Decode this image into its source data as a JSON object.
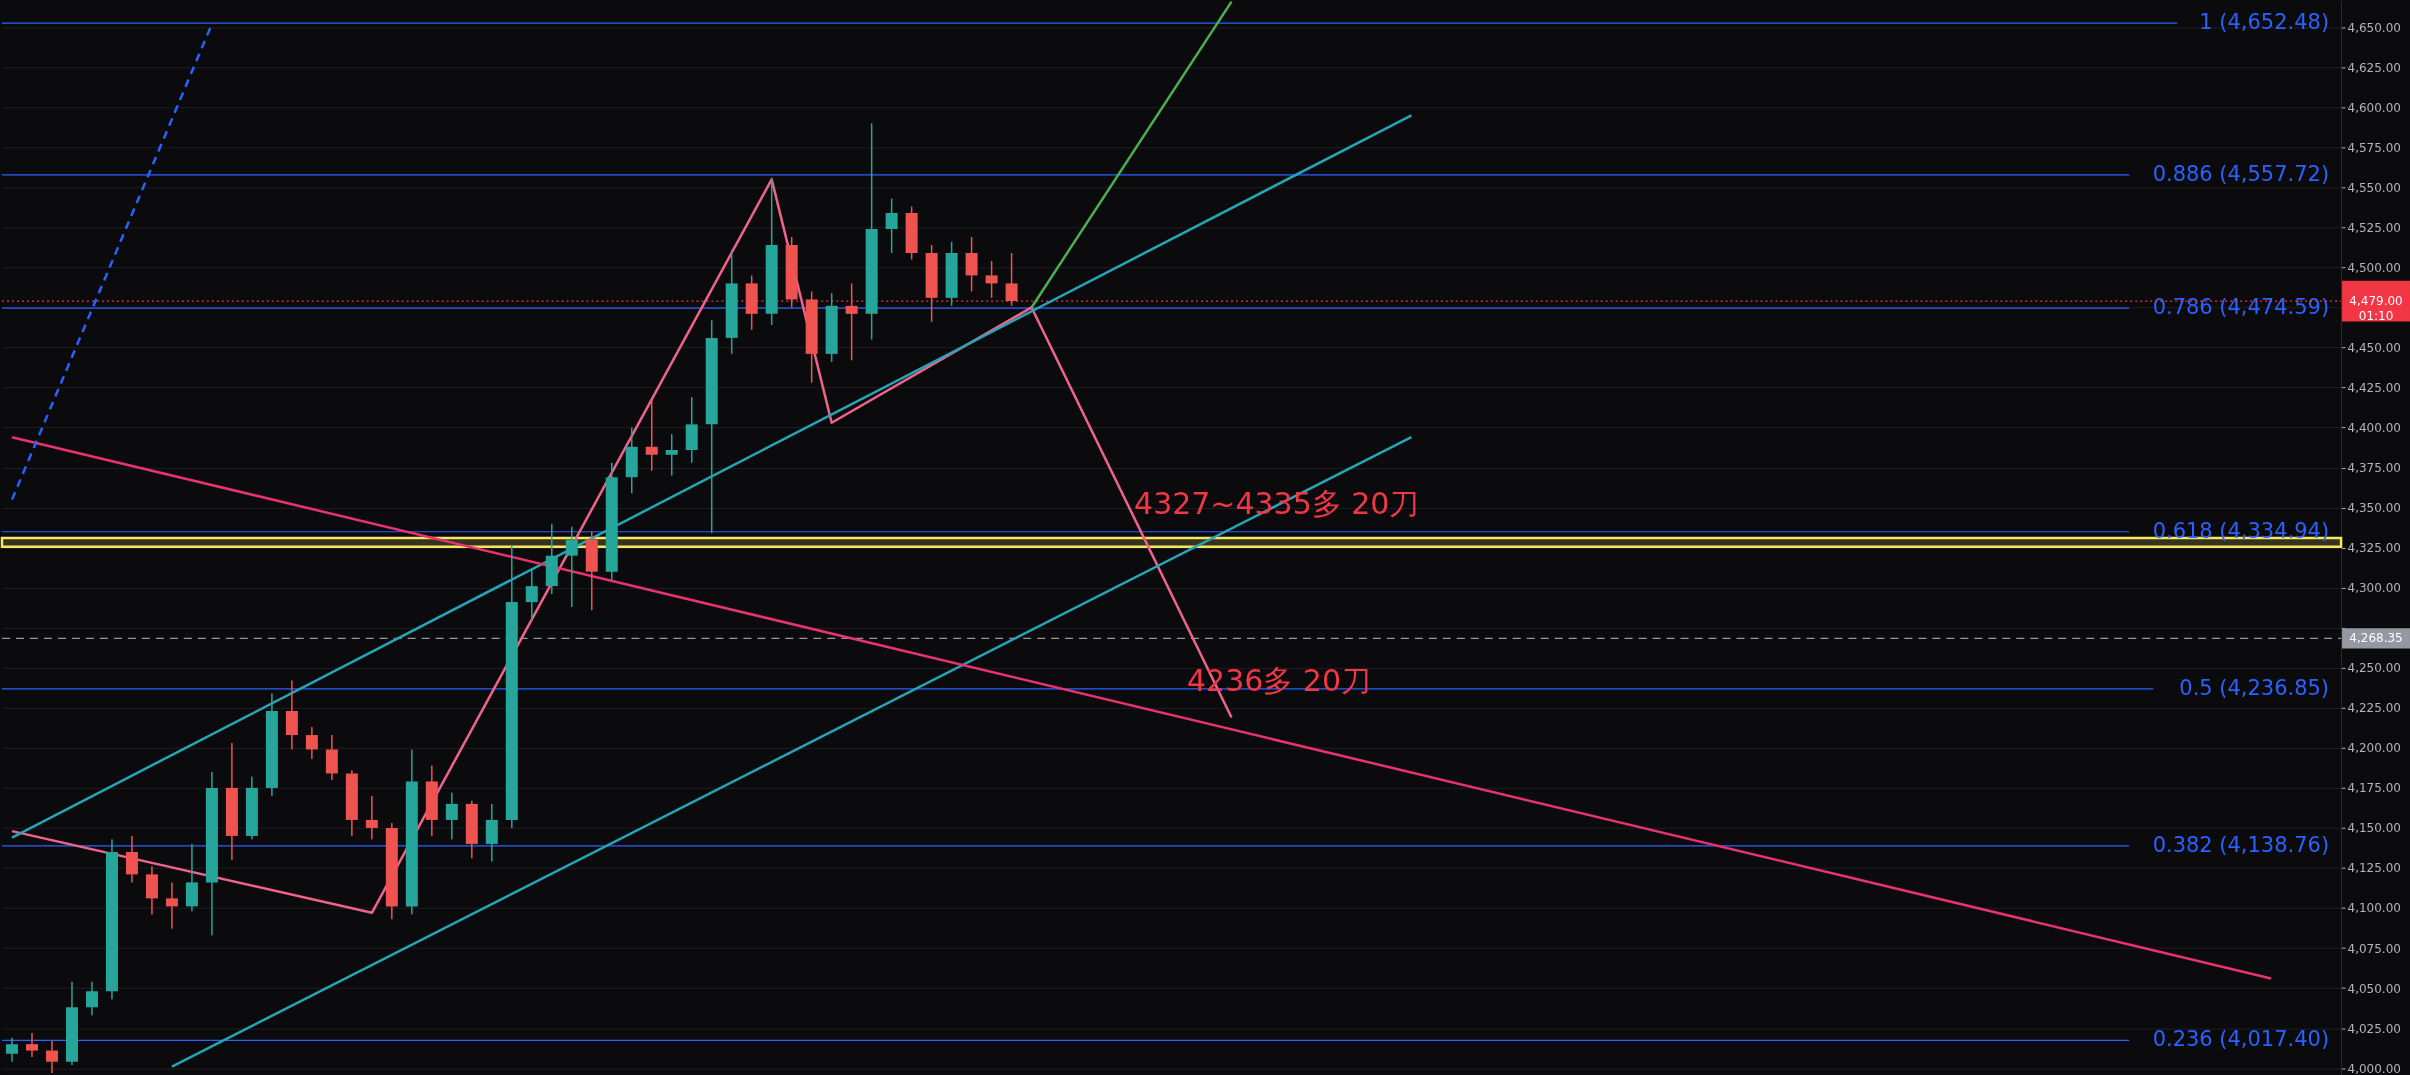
{
  "chart_data": {
    "type": "candlestick",
    "categories": [
      null,
      null,
      null,
      null,
      null,
      null,
      null,
      null,
      null,
      null,
      null,
      null,
      null,
      null,
      null,
      null,
      null,
      null,
      null,
      null,
      null,
      null,
      null,
      null,
      null,
      null,
      null,
      null,
      null,
      null,
      null,
      null,
      null,
      null,
      null,
      null,
      null,
      null,
      null,
      null,
      null,
      null,
      null,
      null,
      null,
      null,
      null,
      null,
      null,
      null,
      null,
      null,
      null,
      null,
      null,
      null,
      null,
      null,
      null,
      null,
      null,
      null,
      null,
      null,
      null,
      null,
      null,
      null,
      null,
      null,
      null,
      null,
      null,
      null,
      null,
      null,
      null,
      null,
      null,
      null,
      null,
      null,
      null,
      null,
      null,
      null,
      null,
      null,
      null,
      null,
      null,
      null,
      null,
      null,
      null,
      null,
      null,
      null,
      null,
      null,
      null,
      null,
      null,
      null,
      null,
      null,
      null,
      null,
      null,
      null,
      null,
      null,
      null,
      null,
      null,
      null,
      null
    ],
    "ohlc": [
      [
        4009,
        4019,
        4004,
        4015
      ],
      [
        4015,
        4022,
        4007,
        4011
      ],
      [
        4011,
        4017,
        3997,
        4004
      ],
      [
        4004,
        4054,
        4002,
        4038
      ],
      [
        4038,
        4054,
        4033,
        4048
      ],
      [
        4048,
        4143,
        4043,
        4135
      ],
      [
        4135,
        4145,
        4116,
        4121
      ],
      [
        4121,
        4126,
        4096,
        4106
      ],
      [
        4106,
        4116,
        4087,
        4101
      ],
      [
        4101,
        4140,
        4098,
        4116
      ],
      [
        4116,
        4185,
        4083,
        4175
      ],
      [
        4175,
        4203,
        4130,
        4145
      ],
      [
        4145,
        4182,
        4143,
        4175
      ],
      [
        4175,
        4234,
        4170,
        4223
      ],
      [
        4223,
        4242,
        4199,
        4208
      ],
      [
        4208,
        4213,
        4193,
        4199
      ],
      [
        4199,
        4208,
        4180,
        4184
      ],
      [
        4184,
        4186,
        4145,
        4155
      ],
      [
        4155,
        4170,
        4143,
        4150
      ],
      [
        4150,
        4153,
        4093,
        4101
      ],
      [
        4101,
        4199,
        4096,
        4179
      ],
      [
        4179,
        4189,
        4145,
        4155
      ],
      [
        4155,
        4172,
        4143,
        4165
      ],
      [
        4165,
        4167,
        4131,
        4140
      ],
      [
        4140,
        4165,
        4129,
        4155
      ],
      [
        4155,
        4326,
        4150,
        4291
      ],
      [
        4291,
        4311,
        4279,
        4301
      ],
      [
        4301,
        4340,
        4296,
        4320
      ],
      [
        4320,
        4338,
        4288,
        4330
      ],
      [
        4330,
        4335,
        4286,
        4310
      ],
      [
        4310,
        4378,
        4305,
        4369
      ],
      [
        4369,
        4400,
        4359,
        4388
      ],
      [
        4388,
        4417,
        4373,
        4383
      ],
      [
        4383,
        4396,
        4370,
        4386
      ],
      [
        4386,
        4419,
        4378,
        4402
      ],
      [
        4402,
        4467,
        4334,
        4456
      ],
      [
        4456,
        4511,
        4446,
        4490
      ],
      [
        4490,
        4495,
        4461,
        4471
      ],
      [
        4471,
        4556,
        4464,
        4514
      ],
      [
        4514,
        4519,
        4475,
        4480
      ],
      [
        4480,
        4485,
        4428,
        4446
      ],
      [
        4446,
        4484,
        4441,
        4476
      ],
      [
        4476,
        4490,
        4442,
        4471
      ],
      [
        4471,
        4590,
        4455,
        4524
      ],
      [
        4524,
        4543,
        4509,
        4534
      ],
      [
        4534,
        4538,
        4505,
        4509
      ],
      [
        4509,
        4514,
        4466,
        4481
      ],
      [
        4481,
        4516,
        4476,
        4509
      ],
      [
        4509,
        4519,
        4485,
        4495
      ],
      [
        4495,
        4504,
        4481,
        4490
      ],
      [
        4490,
        4509,
        4476,
        4479
      ],
      null,
      null,
      null,
      null,
      null,
      null,
      null,
      null,
      null,
      null,
      null,
      null,
      null,
      null,
      null,
      null,
      null,
      null,
      null,
      null,
      null,
      null,
      null,
      null,
      null,
      null,
      null,
      null,
      null,
      null,
      null,
      null,
      null,
      null,
      null,
      null,
      null,
      null,
      null,
      null,
      null,
      null,
      null,
      null,
      null,
      null,
      null,
      null,
      null,
      null,
      null,
      null,
      null,
      null,
      null,
      null,
      null,
      null,
      null,
      null,
      null,
      null,
      null,
      null,
      null,
      null
    ],
    "colors": [
      "#26a69a",
      "#ef5350",
      "#ef5350",
      "#26a69a",
      "#26a69a",
      "#26a69a",
      "#ef5350",
      "#ef5350",
      "#ef5350",
      "#26a69a",
      "#26a69a",
      "#ef5350",
      "#26a69a",
      "#26a69a",
      "#ef5350",
      "#ef5350",
      "#ef5350",
      "#ef5350",
      "#ef5350",
      "#ef5350",
      "#26a69a",
      "#ef5350",
      "#26a69a",
      "#ef5350",
      "#26a69a",
      "#26a69a",
      "#26a69a",
      "#26a69a",
      "#26a69a",
      "#ef5350",
      "#26a69a",
      "#26a69a",
      "#ef5350",
      "#26a69a",
      "#26a69a",
      "#26a69a",
      "#26a69a",
      "#ef5350",
      "#26a69a",
      "#ef5350",
      "#ef5350",
      "#26a69a",
      "#ef5350",
      "#26a69a",
      "#26a69a",
      "#ef5350",
      "#ef5350",
      "#26a69a",
      "#ef5350",
      "#ef5350",
      "#ef5350",
      null,
      null,
      null,
      null,
      null,
      null,
      null,
      null,
      null,
      null,
      null,
      null,
      null,
      null,
      null,
      null,
      null,
      null,
      null,
      null,
      null,
      null,
      null,
      null,
      null,
      null,
      null,
      null,
      null,
      null,
      null,
      null,
      null,
      null,
      null,
      null,
      null,
      null,
      null,
      null,
      null,
      null,
      null,
      null,
      null,
      null,
      null,
      null,
      null,
      null,
      null,
      null,
      null,
      null,
      null,
      null,
      null,
      null,
      null,
      null,
      null,
      null,
      null,
      null,
      null,
      null
    ],
    "series": [
      {
        "type": "line",
        "color": "#f0648c",
        "values": [
          4148,
          null,
          null,
          null,
          null,
          null,
          null,
          null,
          null,
          null,
          null,
          null,
          null,
          null,
          null,
          null,
          null,
          null,
          4097,
          null,
          null,
          null,
          null,
          null,
          null,
          null,
          null,
          null,
          null,
          null,
          null,
          null,
          null,
          null,
          null,
          null,
          null,
          null,
          4555,
          null,
          null,
          4403,
          null,
          null,
          null,
          null,
          null,
          null,
          null,
          null,
          null,
          4475,
          null,
          null,
          null,
          null,
          null,
          null,
          null,
          null,
          null,
          4219,
          null,
          null,
          null,
          null,
          null,
          null,
          null,
          null,
          null,
          null,
          null,
          null,
          null,
          null,
          null,
          null,
          null,
          null,
          null,
          null,
          null,
          null,
          null,
          null,
          null,
          null,
          null,
          null,
          null,
          null,
          null,
          null,
          null,
          null,
          null,
          null,
          null,
          null,
          null,
          null,
          null,
          null,
          null,
          null,
          null,
          null,
          null,
          null,
          null,
          null,
          null,
          null,
          null,
          null,
          null
        ]
      },
      {
        "type": "line",
        "color": "#4caf50",
        "values": [
          null,
          null,
          null,
          null,
          null,
          null,
          null,
          null,
          null,
          null,
          null,
          null,
          null,
          null,
          null,
          null,
          null,
          null,
          null,
          null,
          null,
          null,
          null,
          null,
          null,
          null,
          null,
          null,
          null,
          null,
          null,
          null,
          null,
          null,
          null,
          null,
          null,
          null,
          null,
          null,
          null,
          null,
          null,
          null,
          null,
          null,
          null,
          null,
          null,
          null,
          null,
          4475,
          null,
          null,
          null,
          null,
          null,
          null,
          null,
          null,
          null,
          4666,
          null,
          null,
          null,
          null,
          null,
          null,
          null,
          null,
          null,
          null,
          null,
          null,
          null,
          null,
          null,
          null,
          null,
          null,
          null,
          null,
          null,
          null,
          null,
          null,
          null,
          null,
          null,
          null,
          null,
          null,
          null,
          null,
          null,
          null,
          null,
          null,
          null,
          null,
          null,
          null,
          null,
          null,
          null,
          null,
          null,
          null,
          null,
          null,
          null,
          null,
          null,
          null,
          null,
          null,
          null
        ]
      },
      {
        "type": "line",
        "color": "#26a5b8",
        "values": [
          4144,
          null,
          null,
          null,
          null,
          null,
          null,
          null,
          null,
          null,
          null,
          null,
          null,
          null,
          null,
          null,
          null,
          null,
          null,
          null,
          null,
          null,
          null,
          null,
          null,
          null,
          null,
          null,
          null,
          null,
          null,
          null,
          null,
          null,
          null,
          null,
          null,
          null,
          null,
          null,
          null,
          null,
          null,
          null,
          null,
          null,
          null,
          null,
          null,
          null,
          null,
          null,
          null,
          null,
          null,
          null,
          null,
          null,
          null,
          null,
          null,
          null,
          null,
          null,
          null,
          null,
          null,
          null,
          null,
          null,
          4595,
          null,
          null,
          null,
          null,
          null,
          null,
          null,
          null,
          null,
          null,
          null,
          null,
          null,
          null,
          null,
          null,
          null,
          null,
          null,
          null,
          null,
          null,
          null,
          null,
          null,
          null,
          null,
          null,
          null,
          null,
          null,
          null,
          null,
          null,
          null,
          null,
          null,
          null,
          null,
          null,
          null,
          null,
          null,
          null,
          null,
          null
        ]
      },
      {
        "type": "line",
        "color": "#26a5b8",
        "values": [
          null,
          null,
          null,
          null,
          null,
          null,
          null,
          null,
          4001,
          null,
          null,
          null,
          null,
          null,
          null,
          null,
          null,
          null,
          null,
          null,
          null,
          null,
          null,
          null,
          null,
          null,
          null,
          null,
          null,
          null,
          null,
          null,
          null,
          null,
          null,
          null,
          null,
          null,
          null,
          null,
          null,
          null,
          null,
          null,
          null,
          null,
          null,
          null,
          null,
          null,
          null,
          null,
          null,
          null,
          null,
          null,
          null,
          null,
          null,
          null,
          null,
          null,
          null,
          null,
          null,
          null,
          null,
          null,
          null,
          null,
          4394,
          null,
          null,
          null,
          null,
          null,
          null,
          null,
          null,
          null,
          null,
          null,
          null,
          null,
          null,
          null,
          null,
          null,
          null,
          null,
          null,
          null,
          null,
          null,
          null,
          null,
          null,
          null,
          null,
          null,
          null,
          null,
          null,
          null,
          null,
          null,
          null,
          null,
          null,
          null,
          null,
          null,
          null,
          null,
          null,
          null,
          null
        ]
      },
      {
        "type": "line",
        "color": "#e8336e",
        "values": [
          4394,
          null,
          null,
          null,
          null,
          null,
          null,
          null,
          null,
          null,
          null,
          null,
          null,
          null,
          null,
          null,
          null,
          null,
          null,
          null,
          null,
          null,
          null,
          null,
          null,
          null,
          null,
          null,
          null,
          null,
          null,
          null,
          null,
          null,
          null,
          null,
          null,
          null,
          null,
          null,
          null,
          null,
          null,
          null,
          null,
          null,
          null,
          null,
          null,
          null,
          null,
          null,
          null,
          null,
          null,
          null,
          null,
          null,
          null,
          null,
          null,
          null,
          null,
          null,
          null,
          null,
          null,
          null,
          null,
          null,
          null,
          null,
          null,
          null,
          null,
          null,
          null,
          null,
          null,
          null,
          null,
          null,
          null,
          null,
          null,
          null,
          null,
          null,
          null,
          null,
          null,
          null,
          null,
          null,
          null,
          null,
          null,
          null,
          null,
          null,
          null,
          null,
          null,
          null,
          null,
          null,
          null,
          null,
          null,
          null,
          null,
          null,
          null,
          4056,
          null,
          null,
          null
        ]
      },
      {
        "type": "line",
        "color": "#2962ff",
        "line_style": "dashed",
        "values": [
          4355,
          null,
          null,
          null,
          null,
          null,
          null,
          null,
          null,
          null,
          4652,
          null,
          null,
          null,
          null,
          null,
          null,
          null,
          null,
          null,
          null,
          null,
          null,
          null,
          null,
          null,
          null,
          null,
          null,
          null,
          null,
          null,
          null,
          null,
          null,
          null,
          null,
          null,
          null,
          null,
          null,
          null,
          null,
          null,
          null,
          null,
          null,
          null,
          null,
          null,
          null,
          null,
          null,
          null,
          null,
          null,
          null,
          null,
          null,
          null,
          null,
          null,
          null,
          null,
          null,
          null,
          null,
          null,
          null,
          null,
          null,
          null,
          null,
          null,
          null,
          null,
          null,
          null,
          null,
          null,
          null,
          null,
          null,
          null,
          null,
          null,
          null,
          null,
          null,
          null,
          null,
          null,
          null,
          null,
          null,
          null,
          null,
          null,
          null,
          null,
          null,
          null,
          null,
          null,
          null,
          null,
          null,
          null,
          null,
          null,
          null,
          null,
          null,
          null,
          null,
          null,
          null
        ]
      }
    ],
    "ylim": [
      3996,
      4666.7
    ],
    "yticks": [
      {
        "value": 4000,
        "label": "4,000.00"
      },
      {
        "value": 4025,
        "label": "4,025.00"
      },
      {
        "value": 4050,
        "label": "4,050.00"
      },
      {
        "value": 4075,
        "label": "4,075.00"
      },
      {
        "value": 4100,
        "label": "4,100.00"
      },
      {
        "value": 4125,
        "label": "4,125.00"
      },
      {
        "value": 4150,
        "label": "4,150.00"
      },
      {
        "value": 4175,
        "label": "4,175.00"
      },
      {
        "value": 4200,
        "label": "4,200.00"
      },
      {
        "value": 4225,
        "label": "4,225.00"
      },
      {
        "value": 4250,
        "label": "4,250.00"
      },
      {
        "value": 4275,
        "label": null
      },
      {
        "value": 4300,
        "label": "4,300.00"
      },
      {
        "value": 4325,
        "label": "4,325.00"
      },
      {
        "value": 4350,
        "label": "4,350.00"
      },
      {
        "value": 4375,
        "label": "4,375.00"
      },
      {
        "value": 4400,
        "label": "4,400.00"
      },
      {
        "value": 4425,
        "label": "4,425.00"
      },
      {
        "value": 4450,
        "label": "4,450.00"
      },
      {
        "value": 4475,
        "label": null
      },
      {
        "value": 4500,
        "label": "4,500.00"
      },
      {
        "value": 4525,
        "label": "4,525.00"
      },
      {
        "value": 4550,
        "label": "4,550.00"
      },
      {
        "value": 4575,
        "label": "4,575.00"
      },
      {
        "value": 4600,
        "label": "4,600.00"
      },
      {
        "value": 4625,
        "label": "4,625.00"
      },
      {
        "value": 4650,
        "label": "4,650.00"
      }
    ],
    "ref_lines": [
      {
        "axis": "y",
        "value": 4652.48,
        "label": "1 (4,652.48)",
        "color": "#2962ff"
      },
      {
        "axis": "y",
        "value": 4557.72,
        "label": "0.886 (4,557.72)",
        "color": "#2962ff"
      },
      {
        "axis": "y",
        "value": 4474.59,
        "label": "0.786 (4,474.59)",
        "color": "#2962ff"
      },
      {
        "axis": "y",
        "value": 4334.94,
        "label": "0.618 (4,334.94)",
        "color": "#2962ff"
      },
      {
        "axis": "y",
        "value": 4236.85,
        "label": "0.5 (4,236.85)",
        "color": "#2962ff"
      },
      {
        "axis": "y",
        "value": 4138.76,
        "label": "0.382 (4,138.76)",
        "color": "#2962ff"
      },
      {
        "axis": "y",
        "value": 4017.4,
        "label": "0.236 (4,017.40)",
        "color": "#2962ff"
      },
      {
        "axis": "y",
        "value": 4479,
        "label": "4,479.00\n01:10",
        "color": "#f23645",
        "line_style": "dotted"
      },
      {
        "axis": "y",
        "value": 4268.35,
        "label": "4,268.35",
        "color": "#9598a1",
        "line_style": "dashed"
      }
    ],
    "bands": [
      {
        "axis": "y",
        "from": 4325.5,
        "to": 4331,
        "color": "#f5e663"
      }
    ],
    "annotations": [
      "4327~4335多   20刀",
      "4236多  20刀"
    ],
    "grid": "y",
    "tick_labels": "y"
  }
}
